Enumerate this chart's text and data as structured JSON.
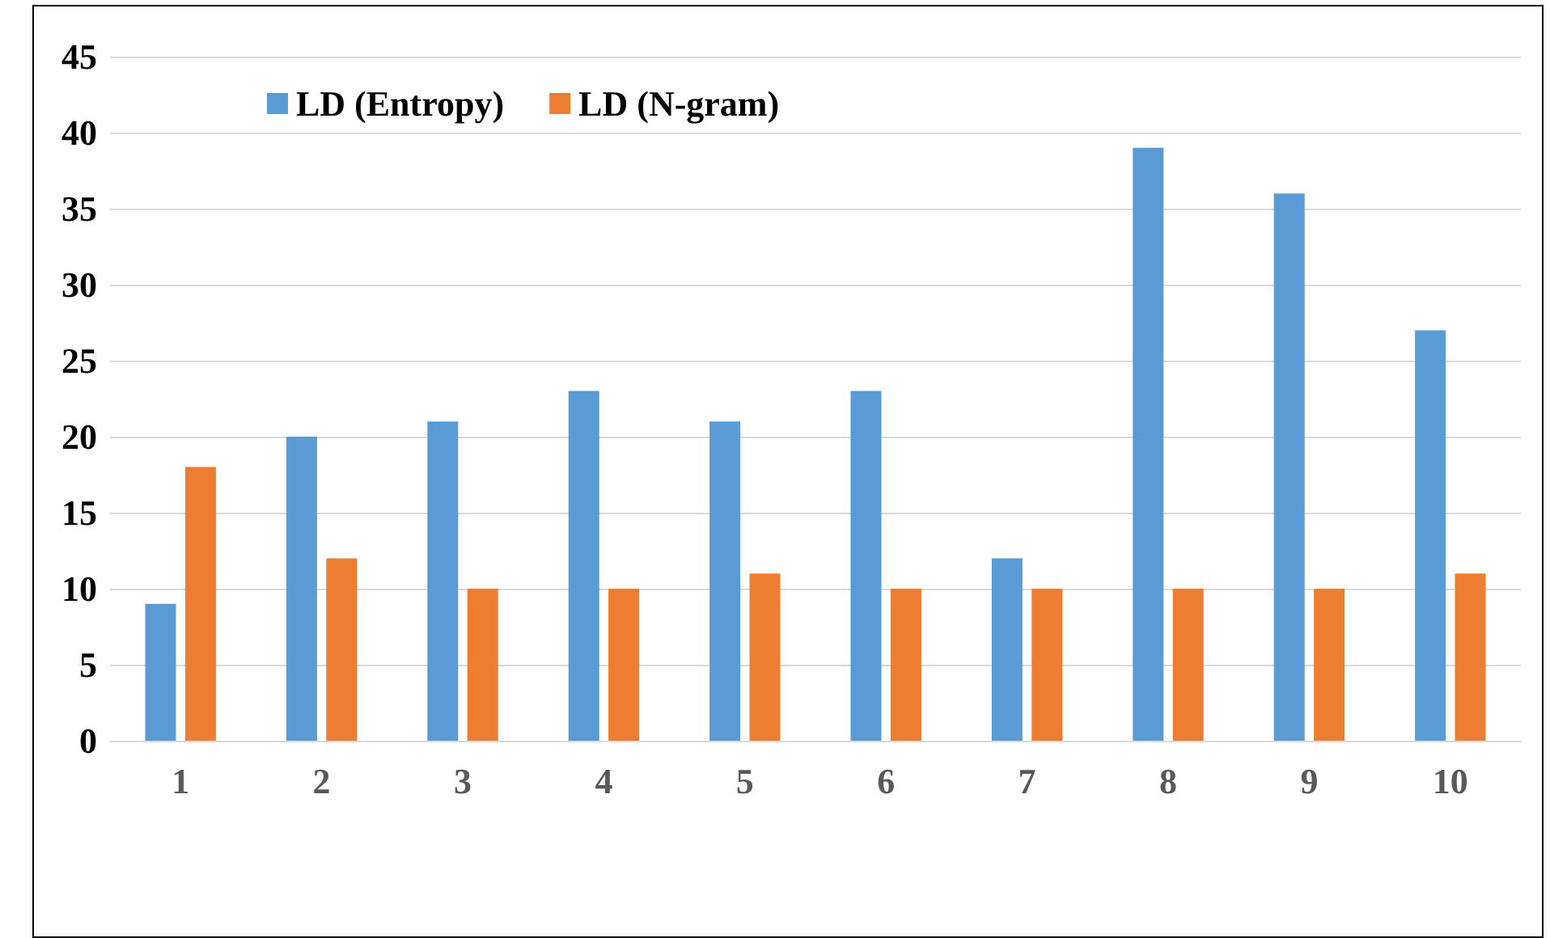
{
  "chart_data": {
    "type": "bar",
    "categories": [
      "1",
      "2",
      "3",
      "4",
      "5",
      "6",
      "7",
      "8",
      "9",
      "10"
    ],
    "series": [
      {
        "name": "LD (Entropy)",
        "color": "#5b9bd5",
        "values": [
          9,
          20,
          21,
          23,
          21,
          23,
          12,
          39,
          36,
          27
        ]
      },
      {
        "name": "LD (N-gram)",
        "color": "#ed7d31",
        "values": [
          18,
          12,
          10,
          10,
          11,
          10,
          10,
          10,
          10,
          11
        ]
      }
    ],
    "ylim": [
      0,
      45
    ],
    "yticks": [
      0,
      5,
      10,
      15,
      20,
      25,
      30,
      35,
      40,
      45
    ],
    "grid": "y",
    "legend": "top left"
  }
}
